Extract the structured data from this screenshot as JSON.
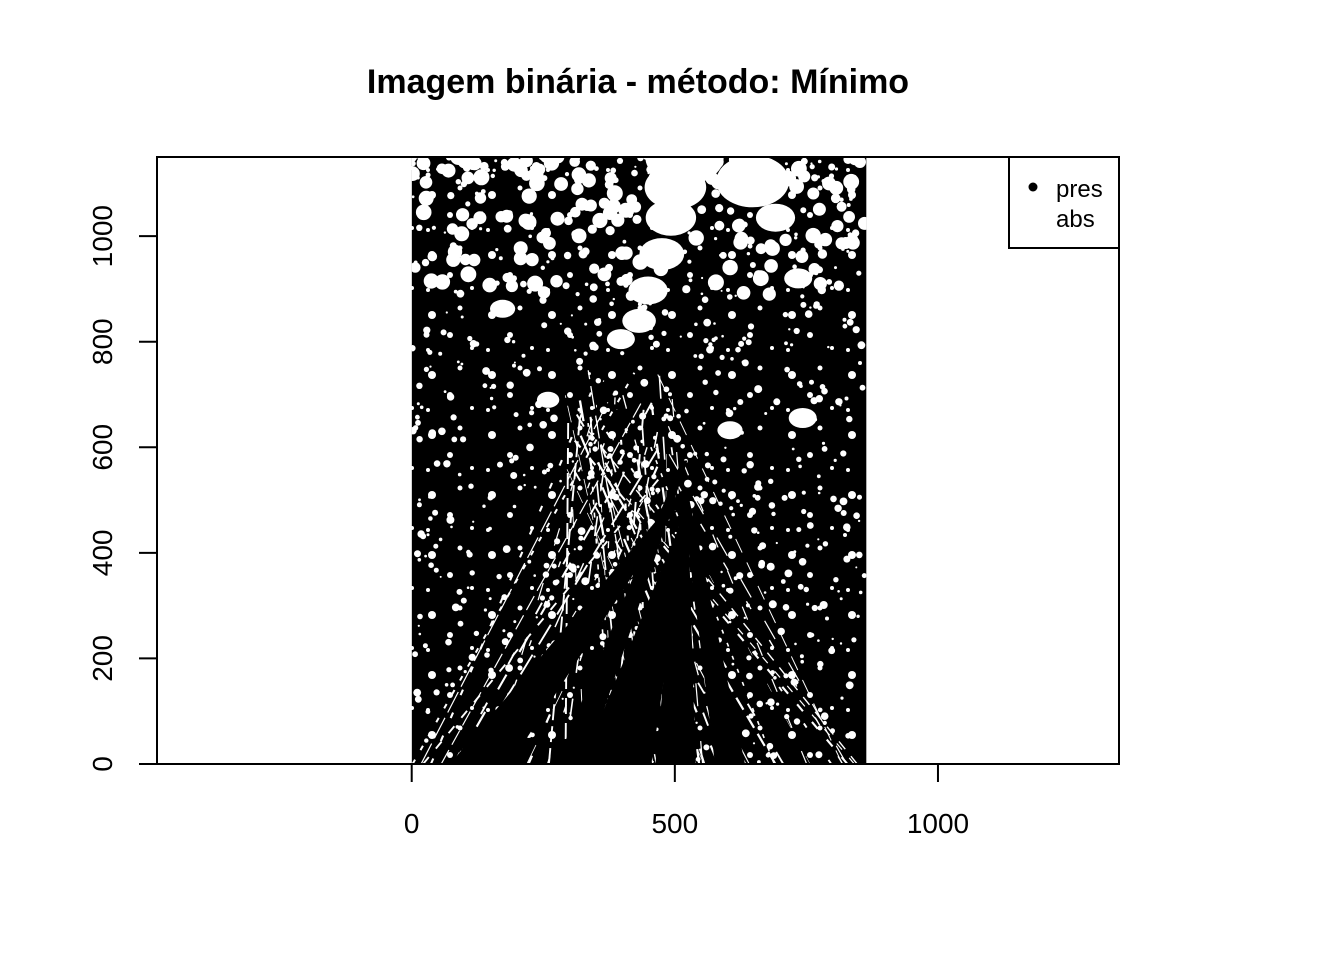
{
  "chart_data": {
    "type": "heatmap",
    "title": "Imagem binária - método: Mínimo",
    "xlabel": "",
    "ylabel": "",
    "xlim": [
      -484,
      1344
    ],
    "ylim": [
      0,
      1150
    ],
    "x_ticks": [
      0,
      500,
      1000
    ],
    "y_ticks": [
      0,
      200,
      400,
      600,
      800,
      1000
    ],
    "image_extent": {
      "x": [
        0,
        864
      ],
      "y": [
        0,
        1150
      ]
    },
    "image_description": "Binary (black/white) thresholded photo of a forest canopy viewed from below",
    "legend": {
      "position": "top-right",
      "entries": [
        {
          "label": "pres",
          "symbol": "filled-dot",
          "color": "#000000"
        },
        {
          "label": "abs",
          "symbol": "none",
          "color": "#ffffff"
        }
      ]
    },
    "grid": false
  }
}
